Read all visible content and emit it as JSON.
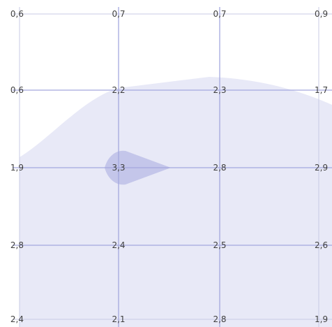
{
  "chart_data": {
    "type": "heatmap",
    "grid": true,
    "rows": 5,
    "cols": 4,
    "values": [
      [
        0.6,
        0.7,
        0.7,
        0.9
      ],
      [
        0.6,
        2.2,
        2.3,
        1.7
      ],
      [
        1.9,
        3.3,
        2.8,
        2.9
      ],
      [
        2.8,
        2.4,
        2.5,
        2.6
      ],
      [
        2.4,
        2.1,
        2.8,
        1.9
      ]
    ],
    "labels": [
      [
        "0,6",
        "0,7",
        "0,7",
        "0,9"
      ],
      [
        "0,6",
        "2,2",
        "2,3",
        "1,7"
      ],
      [
        "1,9",
        "3,3",
        "2,8",
        "2,9"
      ],
      [
        "2,8",
        "2,4",
        "2,5",
        "2,6"
      ],
      [
        "2,4",
        "2,1",
        "2,8",
        "1,9"
      ]
    ],
    "colors": {
      "fill_light": "#e8e9f7",
      "fill_mid": "#dcdef2",
      "fill_peak": "#c4c6ea",
      "grid_strong": "#a3a7de",
      "grid_light": "#c9cbe6",
      "label": "#3f3f3f"
    }
  }
}
